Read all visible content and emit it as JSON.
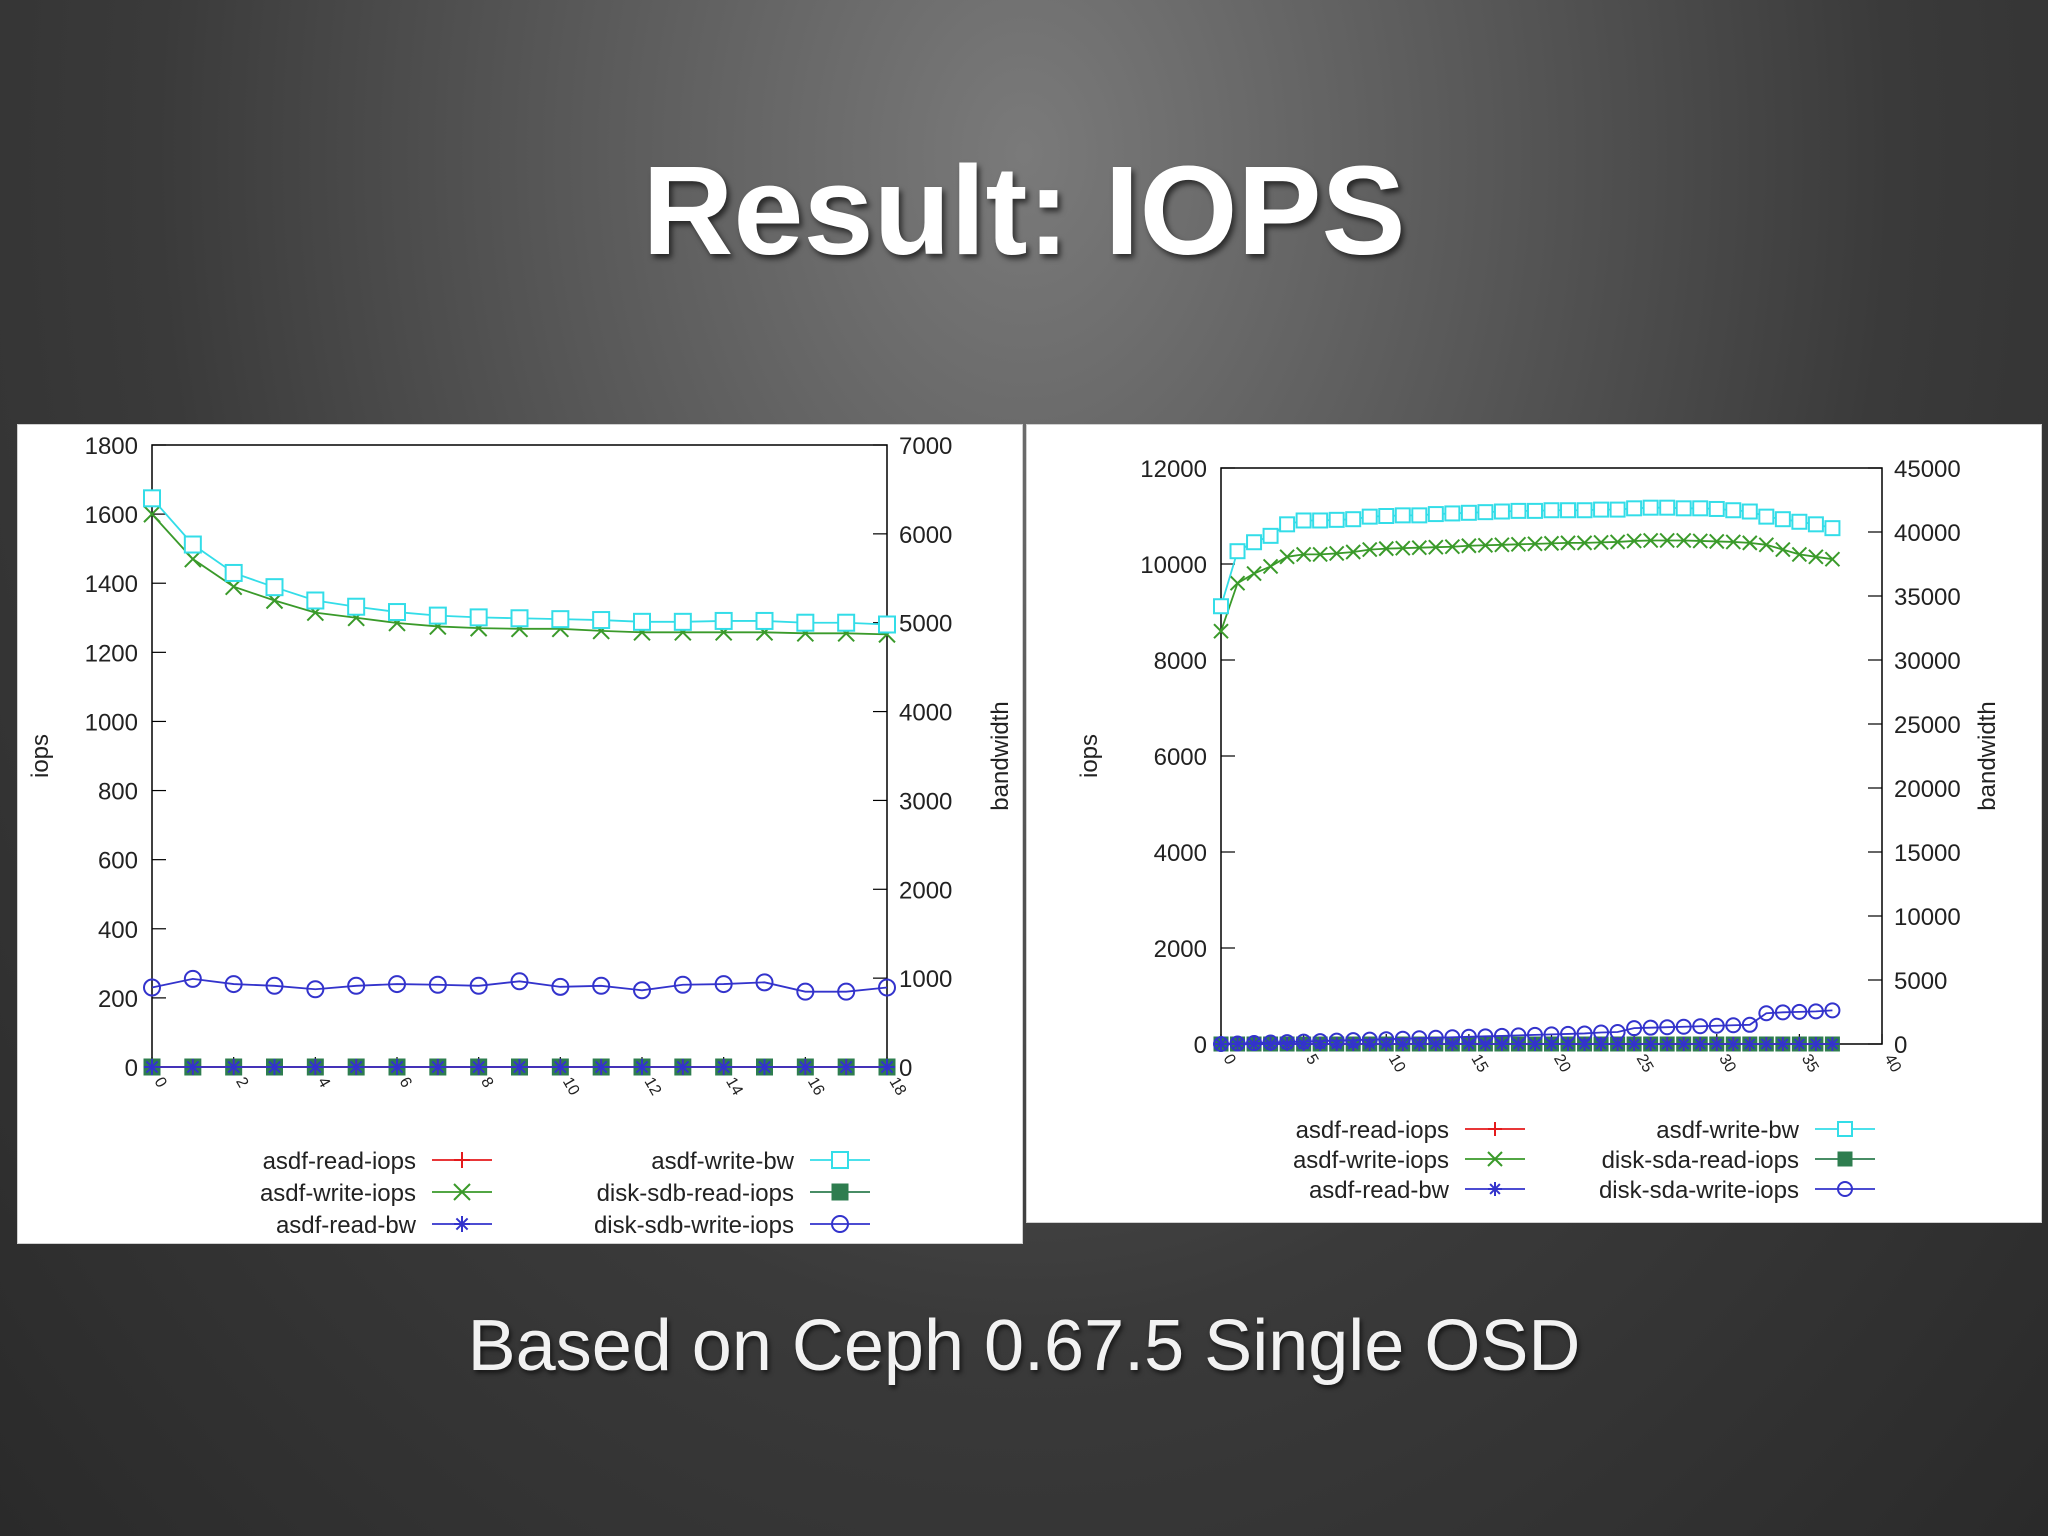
{
  "slide": {
    "title": "Result: IOPS",
    "subtitle": "Based on Ceph 0.67.5 Single OSD"
  },
  "chart_data": [
    {
      "type": "line",
      "ylabel": "iops",
      "y2label": "bandwidth",
      "xlim": [
        0,
        18
      ],
      "ylim": [
        0,
        1800
      ],
      "y2lim": [
        0,
        7000
      ],
      "xticks": [
        0,
        2,
        4,
        6,
        8,
        10,
        12,
        14,
        16,
        18
      ],
      "yticks": [
        0,
        200,
        400,
        600,
        800,
        1000,
        1200,
        1400,
        1600,
        1800
      ],
      "y2ticks": [
        0,
        1000,
        2000,
        3000,
        4000,
        5000,
        6000,
        7000
      ],
      "x": [
        0,
        1,
        2,
        3,
        4,
        5,
        6,
        7,
        8,
        9,
        10,
        11,
        12,
        13,
        14,
        15,
        16,
        17,
        18
      ],
      "series": [
        {
          "name": "asdf-read-iops",
          "axis": "y",
          "color": "#e41a1c",
          "marker": "plus",
          "values": [
            0,
            0,
            0,
            0,
            0,
            0,
            0,
            0,
            0,
            0,
            0,
            0,
            0,
            0,
            0,
            0,
            0,
            0,
            0
          ]
        },
        {
          "name": "asdf-write-iops",
          "axis": "y",
          "color": "#3a9a2a",
          "marker": "x",
          "values": [
            1600,
            1470,
            1390,
            1350,
            1315,
            1300,
            1285,
            1275,
            1270,
            1268,
            1268,
            1262,
            1258,
            1258,
            1258,
            1258,
            1255,
            1255,
            1252
          ]
        },
        {
          "name": "asdf-read-bw",
          "axis": "y2",
          "color": "#3333cc",
          "marker": "star",
          "values": [
            0,
            0,
            0,
            0,
            0,
            0,
            0,
            0,
            0,
            0,
            0,
            0,
            0,
            0,
            0,
            0,
            0,
            0,
            0
          ]
        },
        {
          "name": "asdf-write-bw",
          "axis": "y2",
          "color": "#33dde8",
          "marker": "square-open",
          "values": [
            6400,
            5880,
            5560,
            5400,
            5250,
            5180,
            5120,
            5080,
            5060,
            5050,
            5040,
            5030,
            5010,
            5010,
            5020,
            5020,
            5000,
            5000,
            4980
          ]
        },
        {
          "name": "disk-sdb-read-iops",
          "axis": "y",
          "color": "#2e7d4f",
          "marker": "square-filled",
          "values": [
            0,
            0,
            0,
            0,
            0,
            0,
            0,
            0,
            0,
            0,
            0,
            0,
            0,
            0,
            0,
            0,
            0,
            0,
            0
          ]
        },
        {
          "name": "disk-sdb-write-iops",
          "axis": "y",
          "color": "#3333cc",
          "marker": "circle-open",
          "values": [
            230,
            255,
            240,
            235,
            225,
            235,
            240,
            238,
            235,
            248,
            232,
            235,
            222,
            238,
            240,
            245,
            218,
            218,
            230
          ]
        }
      ],
      "legend": "bottom"
    },
    {
      "type": "line",
      "ylabel": "iops",
      "y2label": "bandwidth",
      "xlim": [
        0,
        40
      ],
      "ylim": [
        0,
        12000
      ],
      "y2lim": [
        0,
        45000
      ],
      "xticks": [
        0,
        5,
        10,
        15,
        20,
        25,
        30,
        35,
        40
      ],
      "yticks": [
        0,
        2000,
        4000,
        6000,
        8000,
        10000,
        12000
      ],
      "y2ticks": [
        0,
        5000,
        10000,
        15000,
        20000,
        25000,
        30000,
        35000,
        40000,
        45000
      ],
      "x": [
        0,
        1,
        2,
        3,
        4,
        5,
        6,
        7,
        8,
        9,
        10,
        11,
        12,
        13,
        14,
        15,
        16,
        17,
        18,
        19,
        20,
        21,
        22,
        23,
        24,
        25,
        26,
        27,
        28,
        29,
        30,
        31,
        32,
        33,
        34,
        35,
        36,
        37
      ],
      "series": [
        {
          "name": "asdf-read-iops",
          "axis": "y",
          "color": "#e41a1c",
          "marker": "plus",
          "values": [
            0,
            0,
            0,
            0,
            0,
            0,
            0,
            0,
            0,
            0,
            0,
            0,
            0,
            0,
            0,
            0,
            0,
            0,
            0,
            0,
            0,
            0,
            0,
            0,
            0,
            0,
            0,
            0,
            0,
            0,
            0,
            0,
            0,
            0,
            0,
            0,
            0,
            0
          ]
        },
        {
          "name": "asdf-write-iops",
          "axis": "y",
          "color": "#3a9a2a",
          "marker": "x",
          "values": [
            8600,
            9600,
            9800,
            9950,
            10150,
            10200,
            10200,
            10220,
            10250,
            10300,
            10320,
            10330,
            10340,
            10350,
            10360,
            10380,
            10390,
            10400,
            10410,
            10420,
            10430,
            10440,
            10440,
            10450,
            10460,
            10480,
            10490,
            10490,
            10490,
            10480,
            10470,
            10460,
            10440,
            10400,
            10300,
            10200,
            10150,
            10100
          ]
        },
        {
          "name": "asdf-read-bw",
          "axis": "y2",
          "color": "#3333cc",
          "marker": "star",
          "values": [
            0,
            0,
            0,
            0,
            0,
            0,
            0,
            0,
            0,
            0,
            0,
            0,
            0,
            0,
            0,
            0,
            0,
            0,
            0,
            0,
            0,
            0,
            0,
            0,
            0,
            0,
            0,
            0,
            0,
            0,
            0,
            0,
            0,
            0,
            0,
            0,
            0,
            0
          ]
        },
        {
          "name": "asdf-write-bw",
          "axis": "y2",
          "color": "#33dde8",
          "marker": "square-open",
          "values": [
            34200,
            38500,
            39200,
            39700,
            40600,
            40900,
            40900,
            40950,
            41000,
            41200,
            41250,
            41300,
            41300,
            41400,
            41450,
            41500,
            41550,
            41600,
            41650,
            41650,
            41700,
            41700,
            41700,
            41750,
            41750,
            41850,
            41900,
            41900,
            41850,
            41850,
            41800,
            41700,
            41600,
            41200,
            41000,
            40800,
            40600,
            40300
          ]
        },
        {
          "name": "disk-sda-read-iops",
          "axis": "y",
          "color": "#2e7d4f",
          "marker": "square-filled",
          "values": [
            0,
            0,
            0,
            0,
            0,
            0,
            0,
            0,
            0,
            0,
            0,
            0,
            0,
            0,
            0,
            0,
            0,
            0,
            0,
            0,
            0,
            0,
            0,
            0,
            0,
            0,
            0,
            0,
            0,
            0,
            0,
            0,
            0,
            0,
            0,
            0,
            0,
            0
          ]
        },
        {
          "name": "disk-sda-write-iops",
          "axis": "y",
          "color": "#3333cc",
          "marker": "circle-open",
          "values": [
            0,
            10,
            20,
            30,
            40,
            50,
            60,
            70,
            80,
            90,
            100,
            110,
            120,
            130,
            140,
            150,
            160,
            170,
            180,
            190,
            200,
            210,
            220,
            240,
            250,
            330,
            340,
            350,
            360,
            370,
            380,
            390,
            400,
            640,
            660,
            670,
            680,
            700
          ]
        }
      ],
      "legend": "bottom"
    }
  ]
}
